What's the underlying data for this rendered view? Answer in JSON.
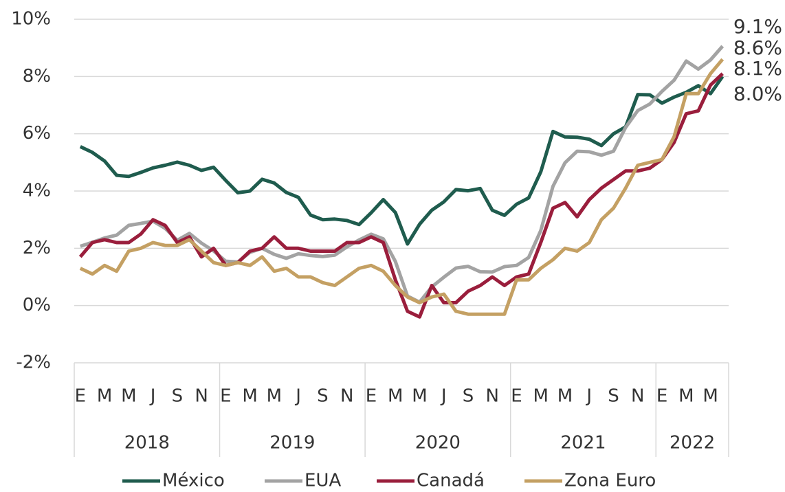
{
  "chart_data": {
    "type": "line",
    "categories": [
      "E",
      null,
      "M",
      null,
      "M",
      null,
      "J",
      null,
      "S",
      null,
      "N",
      null,
      "E",
      null,
      "M",
      null,
      "M",
      null,
      "J",
      null,
      "S",
      null,
      "N",
      null,
      "E",
      null,
      "M",
      null,
      "M",
      null,
      "J",
      null,
      "S",
      null,
      "N",
      null,
      "E",
      null,
      "M",
      null,
      "M",
      null,
      "J",
      null,
      "S",
      null,
      "N",
      null,
      "E",
      null,
      "M",
      null,
      "M",
      null
    ],
    "year_groups": [
      "2018",
      "2019",
      "2020",
      "2021",
      "2022"
    ],
    "series": [
      {
        "name": "México",
        "color": "#1f5c4e",
        "values": [
          5.55,
          5.35,
          5.05,
          4.55,
          4.51,
          4.65,
          4.81,
          4.9,
          5.01,
          4.9,
          4.72,
          4.83,
          4.37,
          3.94,
          4.0,
          4.41,
          4.28,
          3.95,
          3.78,
          3.16,
          3.0,
          3.02,
          2.97,
          2.83,
          3.24,
          3.7,
          3.25,
          2.15,
          2.84,
          3.33,
          3.62,
          4.05,
          4.01,
          4.09,
          3.33,
          3.15,
          3.54,
          3.76,
          4.67,
          6.08,
          5.89,
          5.88,
          5.81,
          5.59,
          6.0,
          6.24,
          7.37,
          7.36,
          7.07,
          7.28,
          7.45,
          7.68,
          7.4,
          8.0
        ],
        "value_labels": [
          null,
          null,
          null,
          null,
          null,
          null,
          null,
          null,
          null,
          null,
          null,
          null,
          null,
          null,
          null,
          null,
          null,
          null,
          null,
          null,
          null,
          null,
          null,
          null,
          null,
          null,
          null,
          null,
          null,
          null,
          null,
          null,
          null,
          null,
          null,
          null,
          null,
          null,
          null,
          null,
          null,
          null,
          null,
          null,
          null,
          null,
          null,
          null,
          null,
          null,
          null,
          null,
          null,
          "8.0%"
        ]
      },
      {
        "name": "EUA",
        "color": "#a3a3a3",
        "values": [
          2.07,
          2.21,
          2.36,
          2.46,
          2.8,
          2.87,
          2.95,
          2.7,
          2.28,
          2.52,
          2.18,
          1.91,
          1.55,
          1.52,
          1.86,
          2.0,
          1.79,
          1.65,
          1.81,
          1.75,
          1.71,
          1.76,
          2.05,
          2.29,
          2.49,
          2.33,
          1.54,
          0.33,
          0.12,
          0.65,
          0.99,
          1.31,
          1.37,
          1.18,
          1.17,
          1.36,
          1.4,
          1.68,
          2.62,
          4.16,
          4.99,
          5.39,
          5.37,
          5.25,
          5.39,
          6.22,
          6.81,
          7.04,
          7.48,
          7.87,
          8.54,
          8.26,
          8.58,
          9.06
        ],
        "value_labels": [
          null,
          null,
          null,
          null,
          null,
          null,
          null,
          null,
          null,
          null,
          null,
          null,
          null,
          null,
          null,
          null,
          null,
          null,
          null,
          null,
          null,
          null,
          null,
          null,
          null,
          null,
          null,
          null,
          null,
          null,
          null,
          null,
          null,
          null,
          null,
          null,
          null,
          null,
          null,
          null,
          null,
          null,
          null,
          null,
          null,
          null,
          null,
          null,
          null,
          null,
          null,
          null,
          null,
          "9.1%"
        ]
      },
      {
        "name": "Canadá",
        "color": "#9a1e3c",
        "values": [
          1.7,
          2.2,
          2.3,
          2.2,
          2.2,
          2.5,
          3.0,
          2.8,
          2.2,
          2.4,
          1.7,
          2.0,
          1.4,
          1.5,
          1.9,
          2.0,
          2.4,
          2.0,
          2.0,
          1.9,
          1.9,
          1.9,
          2.2,
          2.2,
          2.4,
          2.2,
          0.9,
          -0.2,
          -0.4,
          0.7,
          0.1,
          0.1,
          0.5,
          0.7,
          1.0,
          0.7,
          1.0,
          1.1,
          2.2,
          3.4,
          3.6,
          3.1,
          3.7,
          4.1,
          4.4,
          4.7,
          4.7,
          4.8,
          5.1,
          5.7,
          6.7,
          6.8,
          7.7,
          8.1
        ],
        "value_labels": [
          null,
          null,
          null,
          null,
          null,
          null,
          null,
          null,
          null,
          null,
          null,
          null,
          null,
          null,
          null,
          null,
          null,
          null,
          null,
          null,
          null,
          null,
          null,
          null,
          null,
          null,
          null,
          null,
          null,
          null,
          null,
          null,
          null,
          null,
          null,
          null,
          null,
          null,
          null,
          null,
          null,
          null,
          null,
          null,
          null,
          null,
          null,
          null,
          null,
          null,
          null,
          null,
          null,
          "8.1%"
        ]
      },
      {
        "name": "Zona Euro",
        "color": "#c4a063",
        "values": [
          1.3,
          1.1,
          1.4,
          1.2,
          1.9,
          2.0,
          2.2,
          2.1,
          2.1,
          2.3,
          1.9,
          1.5,
          1.4,
          1.5,
          1.4,
          1.7,
          1.2,
          1.3,
          1.0,
          1.0,
          0.8,
          0.7,
          1.0,
          1.3,
          1.4,
          1.2,
          0.7,
          0.3,
          0.1,
          0.3,
          0.4,
          -0.2,
          -0.3,
          -0.3,
          -0.3,
          -0.3,
          0.9,
          0.9,
          1.3,
          1.6,
          2.0,
          1.9,
          2.2,
          3.0,
          3.4,
          4.1,
          4.9,
          5.0,
          5.1,
          5.9,
          7.4,
          7.4,
          8.1,
          8.6
        ],
        "value_labels": [
          null,
          null,
          null,
          null,
          null,
          null,
          null,
          null,
          null,
          null,
          null,
          null,
          null,
          null,
          null,
          null,
          null,
          null,
          null,
          null,
          null,
          null,
          null,
          null,
          null,
          null,
          null,
          null,
          null,
          null,
          null,
          null,
          null,
          null,
          null,
          null,
          null,
          null,
          null,
          null,
          null,
          null,
          null,
          null,
          null,
          null,
          null,
          null,
          null,
          null,
          null,
          null,
          null,
          "8.6%"
        ]
      }
    ],
    "ylim": [
      -2,
      10
    ],
    "yticks": [
      {
        "value": -2,
        "label": "-2%"
      },
      {
        "value": 0,
        "label": "0%"
      },
      {
        "value": 2,
        "label": "2%"
      },
      {
        "value": 4,
        "label": "4%"
      },
      {
        "value": 6,
        "label": "6%"
      },
      {
        "value": 8,
        "label": "8%"
      },
      {
        "value": 10,
        "label": "10%"
      }
    ],
    "grid": true,
    "legend": "bottom"
  }
}
